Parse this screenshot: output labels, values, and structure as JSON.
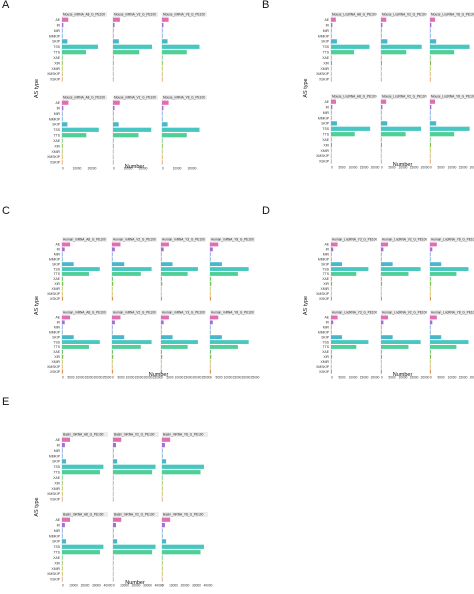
{
  "colors": [
    "#e06fb1",
    "#a26fd3",
    "#6b8ce0",
    "#5aa3d6",
    "#49b6c9",
    "#47c7c0",
    "#4fcf96",
    "#5cc065",
    "#7dbf3a",
    "#a8b93c",
    "#c9a93a",
    "#e8904a",
    "#ee7b7b"
  ],
  "chart_data": [
    {
      "panel": "A",
      "type": "bar",
      "orientation": "horizontal",
      "ylabel": "AS type",
      "xlabel": "Number",
      "categories": [
        "AE",
        "IR",
        "MIR",
        "MMKIP",
        "SKIP",
        "TSS",
        "TTS",
        "XAE",
        "XIR",
        "XMIR",
        "XMSKIP",
        "XSKIP"
      ],
      "xticks": [
        "0",
        "10000",
        "20000"
      ],
      "xlim": [
        0,
        30000
      ],
      "facets": [
        {
          "title": "Mouse_mRNA_A8_G_PE100",
          "values": [
            4200,
            900,
            200,
            150,
            3600,
            24000,
            16000,
            300,
            500,
            150,
            100,
            400
          ]
        },
        {
          "title": "Mouse_mRNA_V2_G_PE100",
          "values": [
            4600,
            1000,
            200,
            150,
            3900,
            26000,
            17500,
            300,
            500,
            150,
            100,
            400
          ]
        },
        {
          "title": "Mouse_mRNA_Y8_G_PE100",
          "values": [
            4400,
            950,
            200,
            150,
            3700,
            25000,
            16500,
            300,
            500,
            150,
            100,
            400
          ]
        },
        {
          "title": "Mouse_mRNA_A8_G_PE100",
          "values": [
            4300,
            900,
            200,
            150,
            3600,
            24500,
            16200,
            300,
            500,
            150,
            100,
            400
          ]
        },
        {
          "title": "Mouse_mRNA_V2_G_PE100",
          "values": [
            4500,
            1000,
            200,
            150,
            3800,
            25500,
            17000,
            300,
            500,
            150,
            100,
            400
          ]
        },
        {
          "title": "Mouse_mRNA_Y8_G_PE100",
          "values": [
            4400,
            950,
            200,
            150,
            3700,
            25000,
            16500,
            300,
            500,
            150,
            100,
            400
          ]
        }
      ]
    },
    {
      "panel": "B",
      "type": "bar",
      "orientation": "horizontal",
      "ylabel": "AS type",
      "xlabel": "Number",
      "categories": [
        "AE",
        "IR",
        "MIR",
        "MMKIP",
        "SKIP",
        "TSS",
        "TTS",
        "XAE",
        "XIR",
        "XMIR",
        "XMSKIP",
        "XSKIP"
      ],
      "xticks": [
        "0",
        "5000",
        "10000",
        "15000",
        "20000"
      ],
      "xlim": [
        0,
        20000
      ],
      "facets": [
        {
          "title": "Mouse_LncRNA_A8_G_PE100",
          "values": [
            2200,
            600,
            150,
            100,
            2700,
            17500,
            10500,
            200,
            450,
            100,
            80,
            300
          ]
        },
        {
          "title": "Mouse_LncRNA_V2_G_PE100",
          "values": [
            2400,
            650,
            150,
            100,
            2900,
            18500,
            11500,
            200,
            450,
            100,
            80,
            300
          ]
        },
        {
          "title": "Mouse_LncRNA_Y8_G_PE100",
          "values": [
            2300,
            620,
            150,
            100,
            2800,
            18000,
            11000,
            200,
            450,
            100,
            80,
            300
          ]
        },
        {
          "title": "Mouse_LncRNA_A8_G_PE100",
          "values": [
            2250,
            600,
            150,
            100,
            2700,
            17800,
            10800,
            200,
            450,
            100,
            80,
            300
          ]
        },
        {
          "title": "Mouse_LncRNA_V2_G_PE100",
          "values": [
            2350,
            640,
            150,
            100,
            2850,
            18200,
            11200,
            200,
            450,
            100,
            80,
            300
          ]
        },
        {
          "title": "Mouse_LncRNA_Y8_G_PE100",
          "values": [
            2300,
            620,
            150,
            100,
            2800,
            18000,
            11000,
            200,
            450,
            100,
            80,
            300
          ]
        }
      ]
    },
    {
      "panel": "C",
      "type": "bar",
      "orientation": "horizontal",
      "ylabel": "AS type",
      "xlabel": "Number",
      "categories": [
        "AE",
        "IR",
        "MIR",
        "MMKIP",
        "SKIP",
        "TSS",
        "TTS",
        "XAE",
        "XIR",
        "XMIR",
        "XMSKIP",
        "XSKIP"
      ],
      "xticks": [
        "0",
        "5000",
        "10000",
        "15000",
        "20000",
        "25000"
      ],
      "xlim": [
        0,
        25000
      ],
      "facets": [
        {
          "title": "Human_mRNA_A8_G_PE100",
          "values": [
            4500,
            1500,
            300,
            200,
            6500,
            21000,
            15000,
            500,
            700,
            200,
            150,
            600
          ]
        },
        {
          "title": "Human_mRNA_V2_G_PE100",
          "values": [
            4700,
            1600,
            300,
            200,
            6800,
            22000,
            16000,
            500,
            700,
            200,
            150,
            600
          ]
        },
        {
          "title": "Human_mRNA_Y3_G_PE100",
          "values": [
            4400,
            1500,
            300,
            200,
            6400,
            20500,
            14800,
            500,
            700,
            200,
            150,
            600
          ]
        },
        {
          "title": "Human_mRNA_Y8_G_PE100",
          "values": [
            4600,
            1550,
            300,
            200,
            6600,
            21500,
            15500,
            500,
            700,
            200,
            150,
            600
          ]
        },
        {
          "title": "Human_mRNA_A8_G_PE100",
          "values": [
            4500,
            1500,
            300,
            200,
            6500,
            21000,
            15000,
            500,
            700,
            200,
            150,
            600
          ]
        },
        {
          "title": "Human_mRNA_V2_G_PE100",
          "values": [
            4700,
            1600,
            300,
            200,
            6800,
            22000,
            16000,
            500,
            700,
            200,
            150,
            600
          ]
        },
        {
          "title": "Human_mRNA_Y3_G_PE100",
          "values": [
            4400,
            1500,
            300,
            200,
            6400,
            20500,
            14800,
            500,
            700,
            200,
            150,
            600
          ]
        },
        {
          "title": "Human_mRNA_Y8_G_PE100",
          "values": [
            4600,
            1550,
            300,
            200,
            6600,
            21500,
            15500,
            500,
            700,
            200,
            150,
            600
          ]
        }
      ]
    },
    {
      "panel": "D",
      "type": "bar",
      "orientation": "horizontal",
      "ylabel": "AS type",
      "xlabel": "Number",
      "categories": [
        "AE",
        "IR",
        "MIR",
        "MMKIP",
        "SKIP",
        "TSS",
        "TTS",
        "XAE",
        "XIR",
        "XMIR",
        "XMSKIP",
        "XSKIP"
      ],
      "xticks": [
        "0",
        "5000",
        "10000",
        "15000",
        "20000"
      ],
      "xlim": [
        0,
        20000
      ],
      "facets": [
        {
          "title": "Human_LncRNA_Y3_G_PE100",
          "values": [
            3000,
            1000,
            250,
            150,
            5000,
            17000,
            11500,
            350,
            500,
            150,
            100,
            450
          ]
        },
        {
          "title": "Human_LncRNA_V2_G_PE100",
          "values": [
            3200,
            1100,
            250,
            150,
            5300,
            18000,
            12500,
            350,
            500,
            150,
            100,
            450
          ]
        },
        {
          "title": "Human_LncRNA_Y8_G_PE100",
          "values": [
            3100,
            1050,
            250,
            150,
            5100,
            17500,
            12000,
            350,
            500,
            150,
            100,
            450
          ]
        },
        {
          "title": "Human_LncRNA_Y3_G_PE100",
          "values": [
            3000,
            1000,
            250,
            150,
            5000,
            17000,
            11500,
            350,
            500,
            150,
            100,
            450
          ]
        },
        {
          "title": "Human_LncRNA_V2_G_PE100",
          "values": [
            3200,
            1100,
            250,
            150,
            5300,
            18000,
            12500,
            350,
            500,
            150,
            100,
            450
          ]
        },
        {
          "title": "Human_LncRNA_Y8_G_PE100",
          "values": [
            3100,
            1050,
            250,
            150,
            5100,
            17500,
            12000,
            350,
            500,
            150,
            100,
            450
          ]
        }
      ]
    },
    {
      "panel": "E",
      "type": "bar",
      "orientation": "horizontal",
      "ylabel": "AS type",
      "xlabel": "Number",
      "categories": [
        "AE",
        "IR",
        "MIR",
        "MMKIP",
        "SKIP",
        "TSS",
        "TTS",
        "XAE",
        "XIR",
        "XMIR",
        "XMSKIP",
        "XSKIP"
      ],
      "xticks": [
        "0",
        "10000",
        "20000",
        "30000",
        "40000"
      ],
      "xlim": [
        0,
        40000
      ],
      "facets": [
        {
          "title": "Basin_mRNA_A8_G_PE100",
          "values": [
            7000,
            2500,
            300,
            200,
            3500,
            36000,
            33000,
            300,
            400,
            150,
            100,
            350
          ]
        },
        {
          "title": "Basin_mRNA_V2_G_PE100",
          "values": [
            7200,
            2600,
            300,
            200,
            3600,
            37000,
            34000,
            300,
            400,
            150,
            100,
            350
          ]
        },
        {
          "title": "Basin_mRNA_Y8_G_PE100",
          "values": [
            7100,
            2550,
            300,
            200,
            3550,
            36500,
            33500,
            300,
            400,
            150,
            100,
            350
          ]
        },
        {
          "title": "Basin_mRNA_A8_G_PE100",
          "values": [
            7000,
            2500,
            300,
            200,
            3500,
            36000,
            33000,
            300,
            400,
            150,
            100,
            350
          ]
        },
        {
          "title": "Basin_mRNA_V2_G_PE100",
          "values": [
            7200,
            2600,
            300,
            200,
            3600,
            37000,
            34000,
            300,
            400,
            150,
            100,
            350
          ]
        },
        {
          "title": "Basin_mRNA_Y8_G_PE100",
          "values": [
            7100,
            2550,
            300,
            200,
            3550,
            36500,
            33500,
            300,
            400,
            150,
            100,
            350
          ]
        }
      ]
    }
  ]
}
